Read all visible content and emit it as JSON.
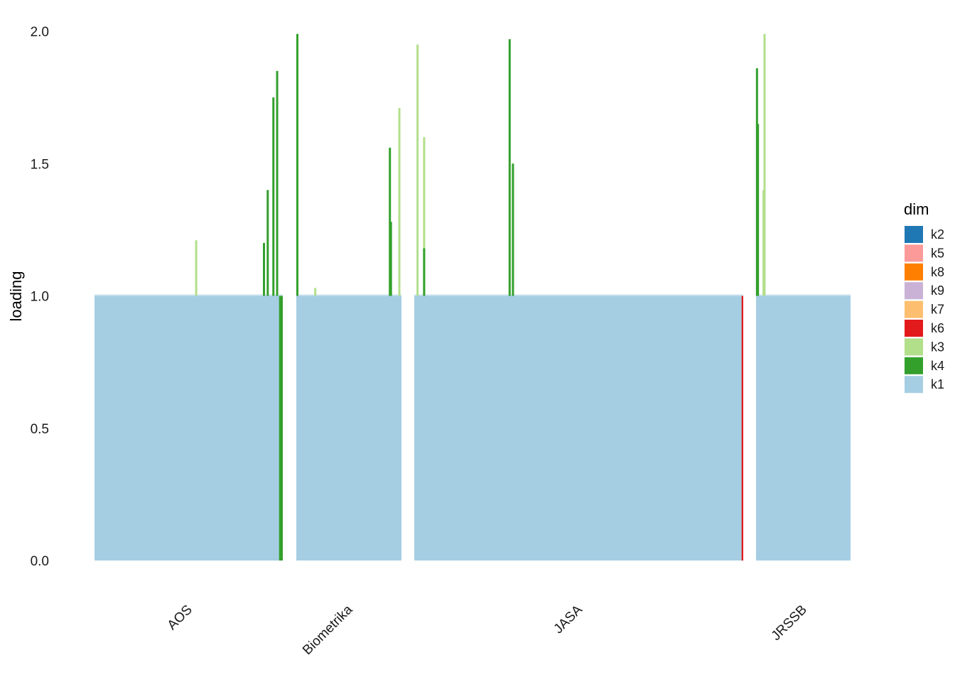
{
  "chart_data": {
    "type": "bar",
    "subtype": "stacked-area-by-group",
    "title": "",
    "xlabel": "",
    "ylabel": "loading",
    "ylim": [
      0,
      2.0
    ],
    "yticks": [
      0.0,
      0.5,
      1.0,
      1.5,
      2.0
    ],
    "ytick_labels": [
      "0.0",
      "0.5",
      "1.0",
      "1.5",
      "2.0"
    ],
    "grid": false,
    "legend": {
      "title": "dim",
      "position": "right",
      "entries": [
        {
          "name": "k2",
          "color": "#1F78B4"
        },
        {
          "name": "k5",
          "color": "#FB9A99"
        },
        {
          "name": "k8",
          "color": "#FF7F00"
        },
        {
          "name": "k9",
          "color": "#CAB2D6"
        },
        {
          "name": "k7",
          "color": "#FDBF6F"
        },
        {
          "name": "k6",
          "color": "#E31A1C"
        },
        {
          "name": "k3",
          "color": "#B2DF8A"
        },
        {
          "name": "k4",
          "color": "#33A02C"
        },
        {
          "name": "k1",
          "color": "#A6CEE3"
        }
      ]
    },
    "categories": [
      "AOS",
      "Biometrika",
      "JASA",
      "JRSSB"
    ],
    "groups": [
      {
        "name": "AOS",
        "base": "k1",
        "base_value": 1.0,
        "peaks": [
          {
            "dim": "k3",
            "x": 0.54,
            "value": 1.21
          },
          {
            "dim": "k4",
            "x": 0.97,
            "value": 1.85
          },
          {
            "dim": "k4",
            "x": 0.95,
            "value": 1.75
          },
          {
            "dim": "k4",
            "x": 0.92,
            "value": 1.4
          },
          {
            "dim": "k4",
            "x": 0.9,
            "value": 1.2
          }
        ],
        "tail": {
          "dim": "k4",
          "from": 0.98,
          "base_min": 0.05
        }
      },
      {
        "name": "Biometrika",
        "base": "k1",
        "base_value": 1.0,
        "peaks": [
          {
            "dim": "k4",
            "x": 0.01,
            "value": 1.99
          },
          {
            "dim": "k3",
            "x": 0.18,
            "value": 1.03
          },
          {
            "dim": "k4",
            "x": 0.89,
            "value": 1.56
          },
          {
            "dim": "k4",
            "x": 0.9,
            "value": 1.28
          },
          {
            "dim": "k3",
            "x": 0.98,
            "value": 1.71
          }
        ]
      },
      {
        "name": "JASA",
        "base": "k1",
        "base_value": 1.0,
        "peaks": [
          {
            "dim": "k3",
            "x": 0.01,
            "value": 1.95
          },
          {
            "dim": "k3",
            "x": 0.03,
            "value": 1.6
          },
          {
            "dim": "k4",
            "x": 0.03,
            "value": 1.18
          },
          {
            "dim": "k4",
            "x": 0.29,
            "value": 1.97
          },
          {
            "dim": "k4",
            "x": 0.3,
            "value": 1.5
          }
        ],
        "tail": {
          "dim": "k6",
          "from": 0.995,
          "base_min": 0.02
        }
      },
      {
        "name": "JRSSB",
        "base": "k1",
        "base_value": 1.0,
        "peaks": [
          {
            "dim": "k4",
            "x": 0.01,
            "value": 1.86
          },
          {
            "dim": "k4",
            "x": 0.02,
            "value": 1.65
          },
          {
            "dim": "k3",
            "x": 0.09,
            "value": 1.99
          },
          {
            "dim": "k3",
            "x": 0.08,
            "value": 1.4
          }
        ]
      }
    ]
  }
}
